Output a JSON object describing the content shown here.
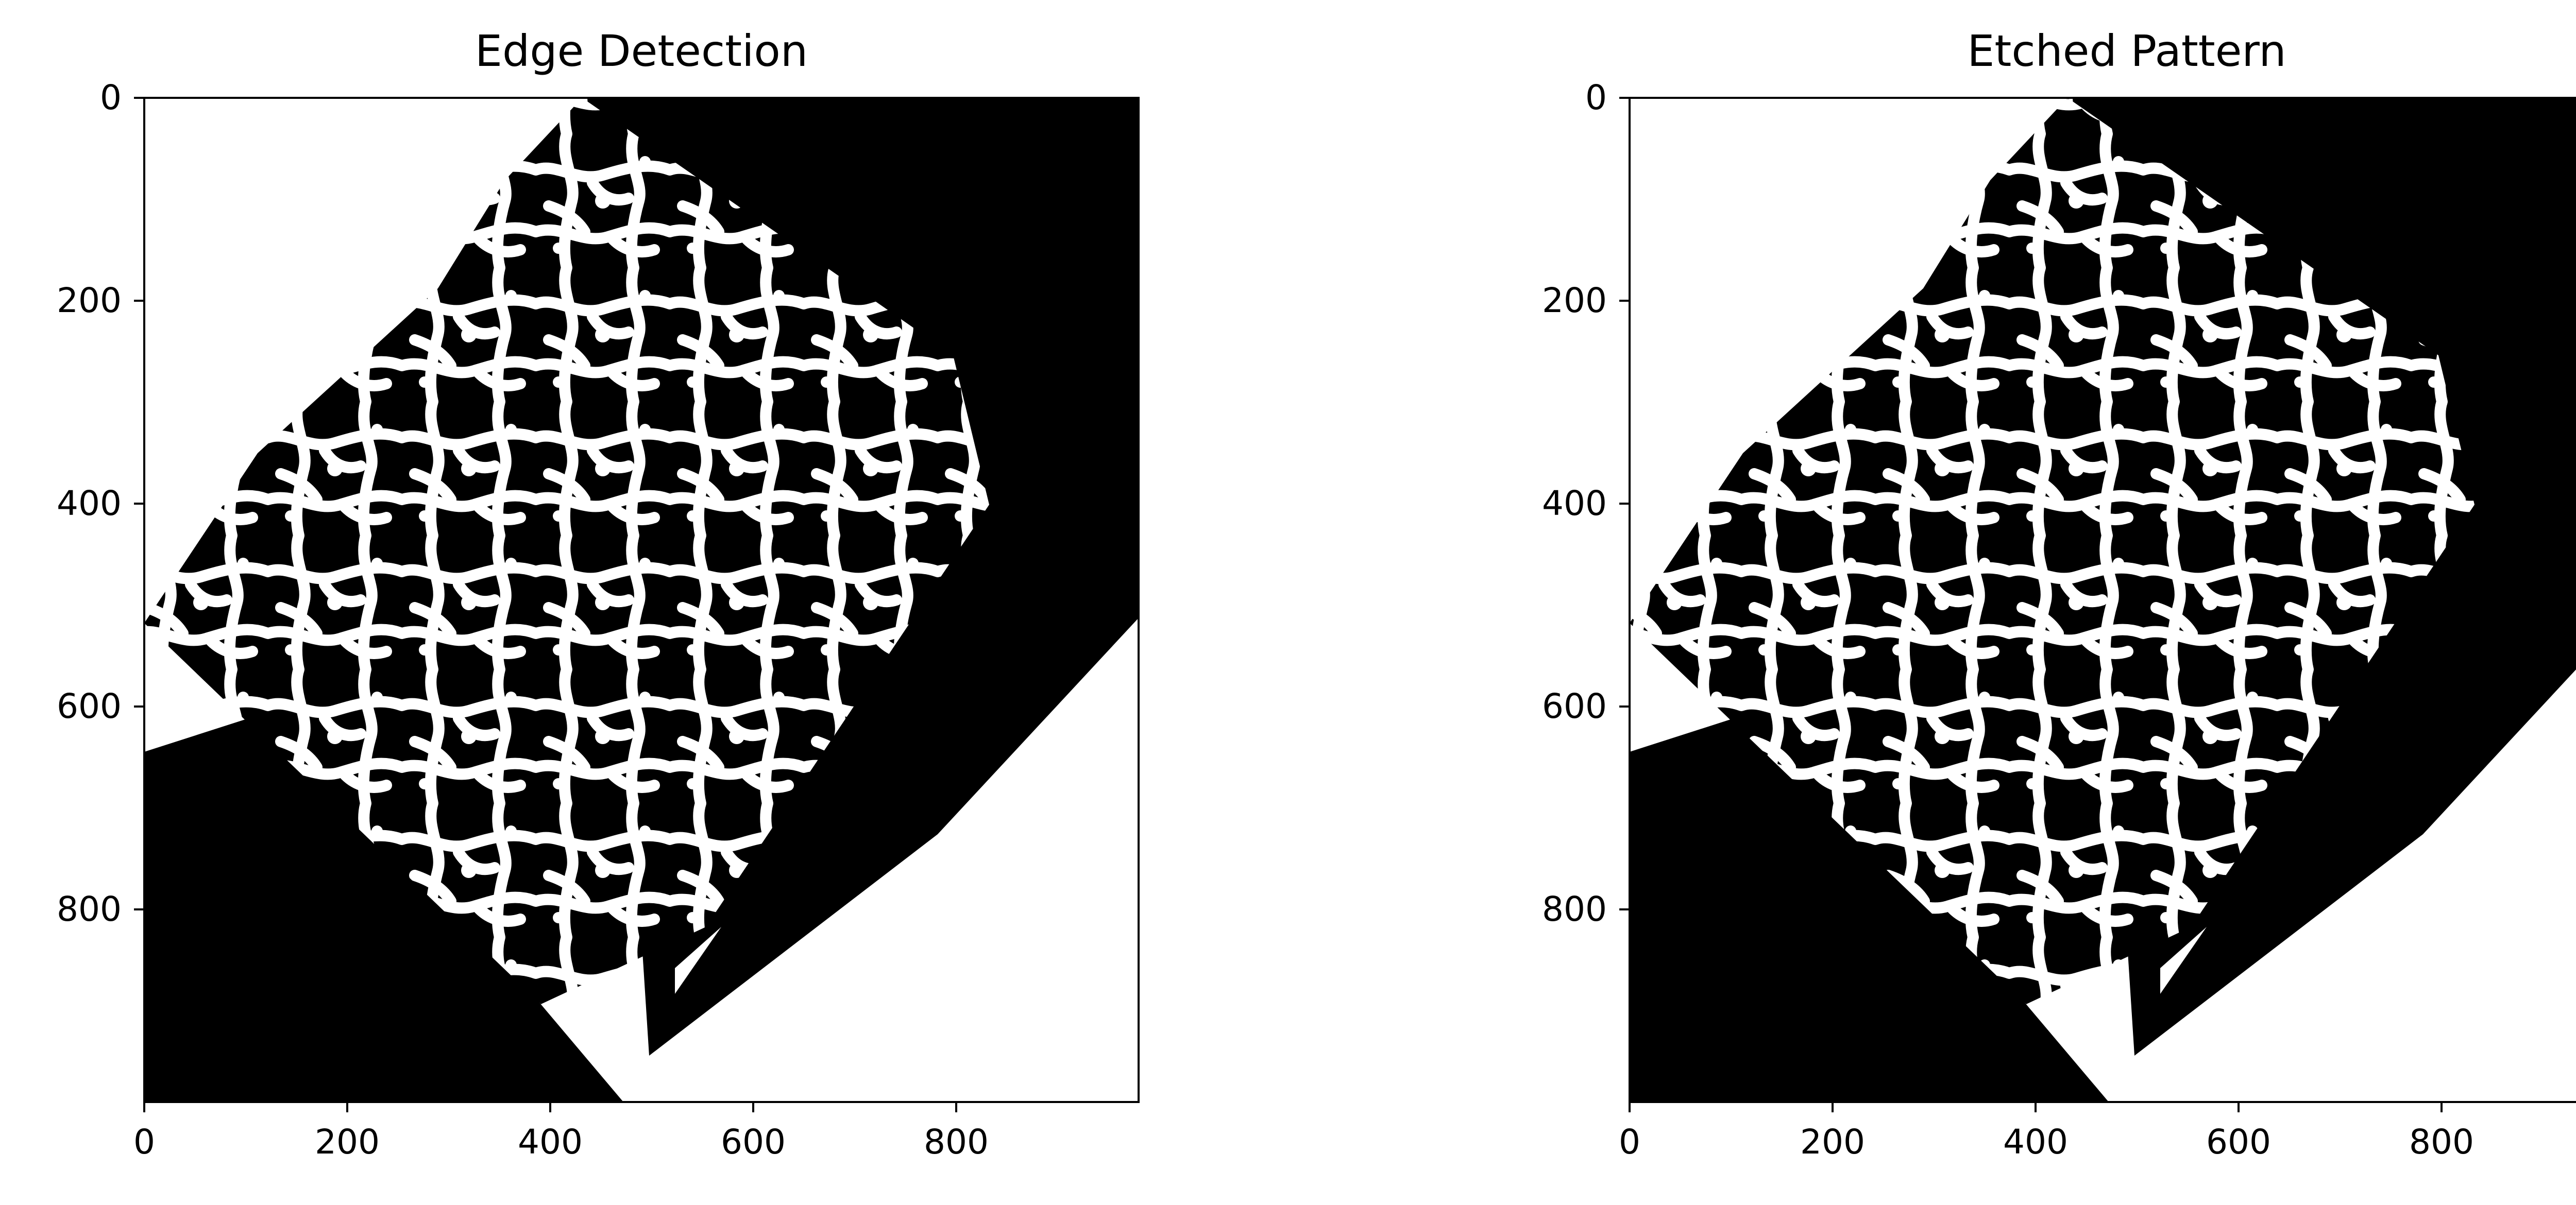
{
  "figure": {
    "background": "#ffffff",
    "panels": [
      {
        "id": "edge",
        "title": "Edge Detection",
        "x_ticks": [
          "0",
          "200",
          "400",
          "600",
          "800"
        ],
        "y_ticks": [
          "0",
          "200",
          "400",
          "600",
          "800"
        ],
        "x_range": [
          0,
          980
        ],
        "y_range": [
          0,
          990
        ]
      },
      {
        "id": "etched",
        "title": "Etched Pattern",
        "x_ticks": [
          "0",
          "200",
          "400",
          "600",
          "800"
        ],
        "y_ticks": [
          "0",
          "200",
          "400",
          "600",
          "800"
        ],
        "x_range": [
          0,
          980
        ],
        "y_range": [
          0,
          990
        ]
      }
    ]
  }
}
